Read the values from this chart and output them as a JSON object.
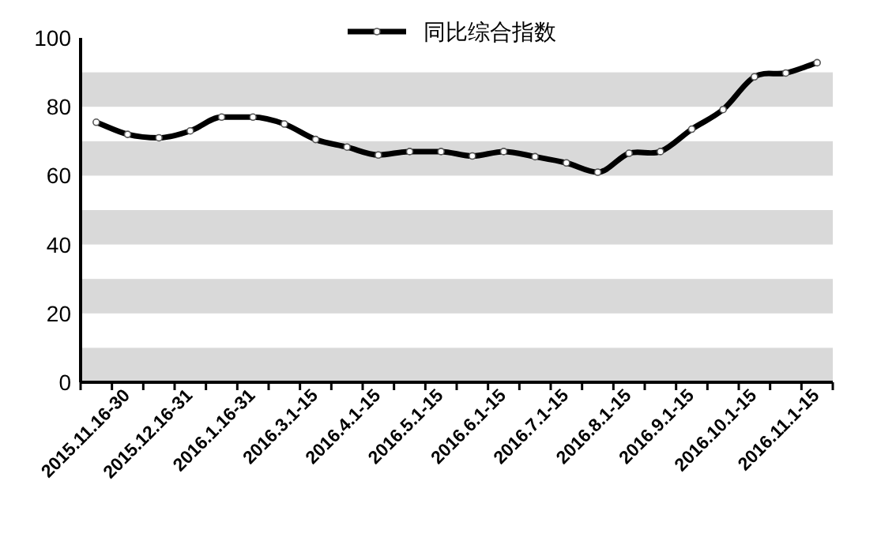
{
  "chart_data": {
    "type": "line",
    "categories": [
      null,
      "2015.11.16-30",
      null,
      "2015.12.16-31",
      null,
      "2016.1.16-31",
      null,
      "2016.3.1-15",
      null,
      "2016.4.1-15",
      null,
      "2016.5.1-15",
      null,
      "2016.6.1-15",
      null,
      "2016.7.1-15",
      null,
      "2016.8.1-15",
      null,
      "2016.9.1-15",
      null,
      "2016.10.1-15",
      null,
      "2016.11.1-15"
    ],
    "series": [
      {
        "name": "同比综合指数",
        "color": "#000000",
        "values": [
          75.5,
          72,
          71,
          73,
          77,
          77,
          75,
          70.5,
          68.3,
          66,
          67,
          67,
          65.7,
          67,
          65.5,
          63.7,
          61,
          66.5,
          67,
          73.5,
          79.2,
          88.7,
          89.8,
          92.8
        ]
      }
    ],
    "ylim": [
      0,
      100
    ],
    "yticks": [
      0,
      20,
      40,
      60,
      80,
      100
    ],
    "bands": [
      {
        "axis": "y",
        "from": 0,
        "to": 10,
        "color": "#d9d9d9"
      },
      {
        "axis": "y",
        "from": 20,
        "to": 30,
        "color": "#d9d9d9"
      },
      {
        "axis": "y",
        "from": 40,
        "to": 50,
        "color": "#d9d9d9"
      },
      {
        "axis": "y",
        "from": 60,
        "to": 70,
        "color": "#d9d9d9"
      },
      {
        "axis": "y",
        "from": 80,
        "to": 90,
        "color": "#d9d9d9"
      }
    ],
    "legend": "top",
    "marker": "circle",
    "line_style": "solid"
  }
}
